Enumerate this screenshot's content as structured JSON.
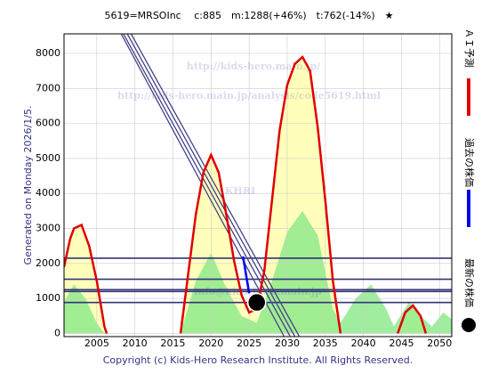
{
  "chart_data": {
    "type": "line",
    "title": "5619=MRSOInc　 c:885　m:1288(+46%)　t:762(-14%)　★",
    "note": "Generated on Monday 2026/1/5.",
    "footer": "Copyright (c) Kids-Hero Research Institute. All Rights Reserved.",
    "watermarks": [
      "http://kids-hero.main.jp/",
      "http://kids-hero.main.jp/analysis/code5619.html",
      "KHRI",
      "info@kids-hero.main.jp"
    ],
    "xlim": [
      2000.7,
      2051.6
    ],
    "ylim": [
      -90,
      8560
    ],
    "xticks": [
      2005,
      2010,
      2015,
      2020,
      2025,
      2030,
      2035,
      2040,
      2045,
      2050
    ],
    "yticks": [
      0,
      1000,
      2000,
      3000,
      4000,
      5000,
      6000,
      7000,
      8000
    ],
    "grid": true,
    "area": {
      "color": "#88e888",
      "x": [
        2000.7,
        2002,
        2003.5,
        2005,
        2006,
        null,
        2016,
        2018,
        2020,
        2022,
        2024,
        2026,
        2028,
        2030,
        2032,
        2034,
        2036,
        2037,
        2039,
        2041,
        2043,
        2044,
        2046,
        2048,
        2049,
        2050.5,
        2051.6
      ],
      "values": [
        900,
        1400,
        1000,
        300,
        0,
        null,
        0,
        1500,
        2300,
        1300,
        500,
        300,
        1500,
        2900,
        3500,
        2800,
        700,
        300,
        1000,
        1400,
        700,
        200,
        900,
        400,
        200,
        600,
        400
      ]
    },
    "series": [
      {
        "name": "ＡＩ予測",
        "color": "#e00000",
        "fill": "#ffffaa",
        "x": [
          2000.7,
          2001.5,
          2002,
          2003,
          2004,
          2005,
          2006,
          2006.3,
          null,
          2016,
          2017,
          2018,
          2019,
          2020,
          2021,
          2022,
          2023,
          2024,
          2025,
          2026,
          2027,
          2028,
          2029,
          2030,
          2031,
          2032,
          2033,
          2034,
          2035,
          2036,
          2037,
          null,
          2044.5,
          2045.5,
          2046.5,
          2047.5,
          2048.2
        ],
        "values": [
          1900,
          2700,
          3000,
          3100,
          2500,
          1500,
          200,
          0,
          null,
          0,
          1700,
          3400,
          4600,
          5100,
          4600,
          3400,
          2100,
          1100,
          600,
          700,
          1800,
          3800,
          5800,
          7100,
          7700,
          7900,
          7500,
          5900,
          3800,
          1500,
          0,
          null,
          0,
          600,
          800,
          500,
          0
        ]
      },
      {
        "name": "過去の株価",
        "color": "#0000ee",
        "x": [
          2024.2,
          2025.0
        ],
        "values": [
          2200,
          1150
        ]
      },
      {
        "name": "最新の株価",
        "color": "#000000",
        "marker": "circle",
        "x": [
          2026.0
        ],
        "values": [
          885
        ]
      }
    ],
    "trendlines": {
      "color": "#444488",
      "lines": [
        {
          "x": [
            2008.2,
            2029.6
          ],
          "values": [
            8560,
            -90
          ]
        },
        {
          "x": [
            2008.5,
            2030.4
          ],
          "values": [
            8560,
            -90
          ]
        },
        {
          "x": [
            2009.0,
            2031.0
          ],
          "values": [
            8560,
            -90
          ]
        },
        {
          "x": [
            2009.5,
            2031.6
          ],
          "values": [
            8560,
            -90
          ]
        }
      ]
    },
    "levels": {
      "color": "#333377",
      "values": [
        2150,
        1550,
        1250,
        1200,
        885
      ]
    }
  }
}
